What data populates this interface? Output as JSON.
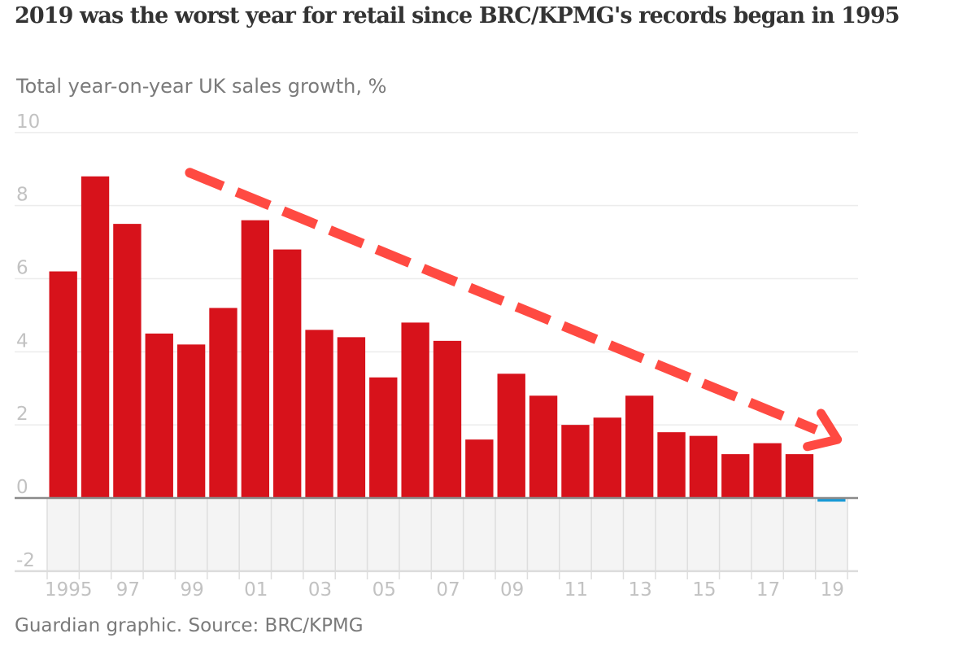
{
  "header": {
    "title": "2019 was the worst year for retail since BRC/KPMG's records began in 1995",
    "subtitle": "Total year-on-year UK sales growth, %"
  },
  "footer": {
    "source": "Guardian graphic. Source: BRC/KPMG"
  },
  "colors": {
    "positive_bar": "#d7121b",
    "negative_bar": "#1a9ad6",
    "trend_arrow": "#ff4a42",
    "gridline": "#ececec",
    "zero_line": "#8a8a8a",
    "negative_zone": "#f4f4f4",
    "tick_text": "#c2c2c2"
  },
  "chart_data": {
    "type": "bar",
    "title": "2019 was the worst year for retail since BRC/KPMG's records began in 1995",
    "subtitle": "Total year-on-year UK sales growth, %",
    "xlabel": "",
    "ylabel": "Total year-on-year UK sales growth, %",
    "categories": [
      "1995",
      "1996",
      "1997",
      "1998",
      "1999",
      "2000",
      "2001",
      "2002",
      "2003",
      "2004",
      "2005",
      "2006",
      "2007",
      "2008",
      "2009",
      "2010",
      "2011",
      "2012",
      "2013",
      "2014",
      "2015",
      "2016",
      "2017",
      "2018",
      "2019"
    ],
    "values": [
      6.2,
      8.8,
      7.5,
      4.5,
      4.2,
      5.2,
      7.6,
      6.8,
      4.6,
      4.4,
      3.3,
      4.8,
      4.3,
      1.6,
      3.4,
      2.8,
      2.0,
      2.2,
      2.8,
      1.8,
      1.7,
      1.2,
      1.5,
      1.2,
      -0.1
    ],
    "ylim": [
      -2,
      10
    ],
    "yticks": [
      10,
      8,
      6,
      4,
      2,
      0,
      -2
    ],
    "ytick_labels": [
      "10",
      "8",
      "6",
      "4",
      "2",
      "0",
      "-2"
    ],
    "xtick_labels": [
      {
        "category": "1995",
        "label": "1995"
      },
      {
        "category": "1997",
        "label": "97"
      },
      {
        "category": "1999",
        "label": "99"
      },
      {
        "category": "2001",
        "label": "01"
      },
      {
        "category": "2003",
        "label": "03"
      },
      {
        "category": "2005",
        "label": "05"
      },
      {
        "category": "2007",
        "label": "07"
      },
      {
        "category": "2009",
        "label": "09"
      },
      {
        "category": "2011",
        "label": "11"
      },
      {
        "category": "2013",
        "label": "13"
      },
      {
        "category": "2015",
        "label": "15"
      },
      {
        "category": "2017",
        "label": "17"
      },
      {
        "category": "2019",
        "label": "19"
      }
    ],
    "grid": true,
    "legend": "none",
    "annotations": [
      {
        "type": "dashed-arrow",
        "description": "downward trend arrow",
        "from_category": "1999",
        "from_value": 8.9,
        "to_category": "2019",
        "to_value": 1.6
      }
    ]
  }
}
